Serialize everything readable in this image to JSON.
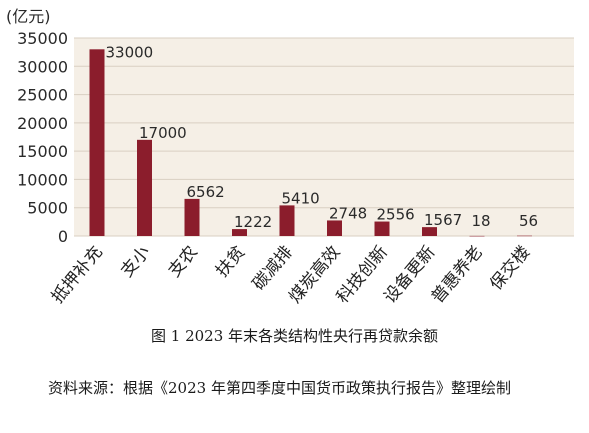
{
  "chart_data": {
    "type": "bar",
    "unit_label": "(亿元)",
    "categories": [
      "抵押补充",
      "支小",
      "支农",
      "扶贫",
      "碳减排",
      "煤炭高效",
      "科技创新",
      "设备更新",
      "普惠养老",
      "保交楼"
    ],
    "values": [
      33000,
      17000,
      6562,
      1222,
      5410,
      2748,
      2556,
      1567,
      18,
      56
    ],
    "data_labels": [
      "33000",
      "17000",
      "6562",
      "1222",
      "5410",
      "2748",
      "2556",
      "1567",
      "18",
      "56"
    ],
    "y_ticks": [
      "0",
      "5000",
      "10000",
      "15000",
      "20000",
      "25000",
      "30000",
      "35000"
    ],
    "ylim": [
      0,
      35000
    ],
    "grid": true,
    "colors": {
      "bar": "#8b1d2c",
      "panel": "#f5efe6"
    }
  },
  "caption": "图 1  2023 年末各类结构性央行再贷款余额",
  "source": "资料来源：根据《2023 年第四季度中国货币政策执行报告》整理绘制"
}
